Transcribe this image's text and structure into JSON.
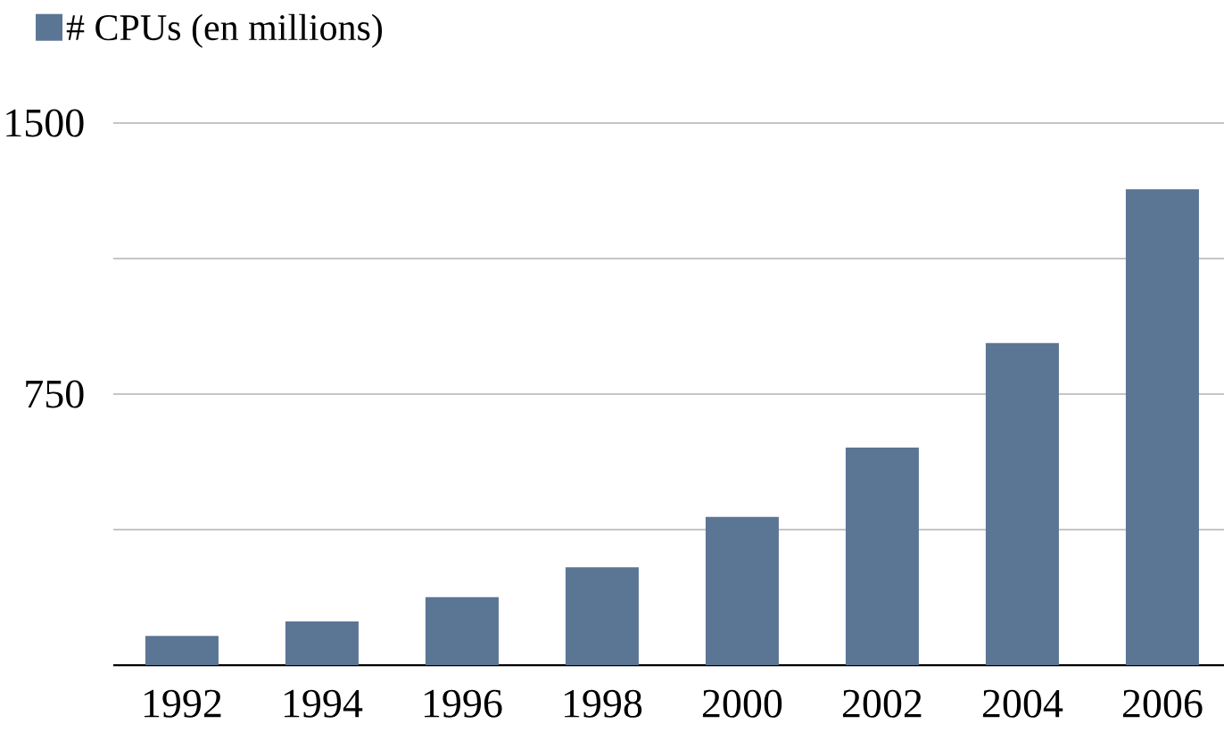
{
  "chart_data": {
    "type": "bar",
    "categories": [
      "1992",
      "1994",
      "1996",
      "1998",
      "2000",
      "2002",
      "2004",
      "2006"
    ],
    "series": [
      {
        "name": "# CPUs (en millions)",
        "color": "#5b7594",
        "values": [
          81,
          121,
          188,
          271,
          410,
          602,
          891,
          1317
        ]
      }
    ],
    "ylim": [
      0,
      1500
    ],
    "yticks": [
      {
        "value": 375,
        "label": null
      },
      750,
      {
        "value": 1125,
        "label": null
      },
      1500
    ],
    "grid": "y",
    "legend": "top left"
  }
}
